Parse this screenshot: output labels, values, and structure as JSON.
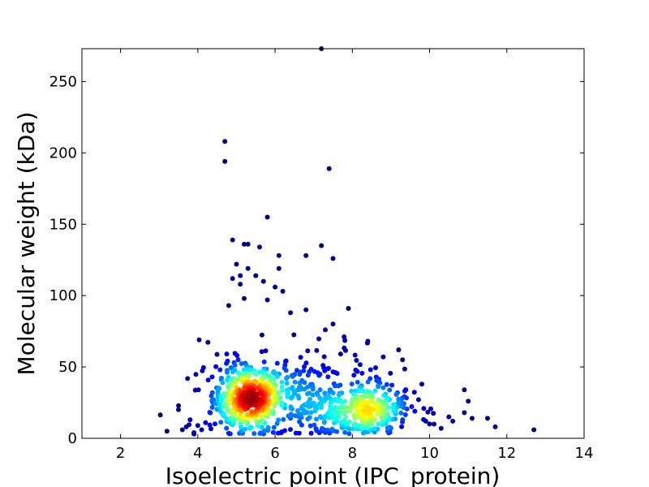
{
  "chart_data": {
    "type": "scatter",
    "title": "",
    "xlabel": "Isoelectric point (IPC_protein)",
    "ylabel": "Molecular weight (kDa)",
    "xlim": [
      1,
      14
    ],
    "ylim": [
      0,
      273
    ],
    "x_ticks": [
      2,
      4,
      6,
      8,
      10,
      12,
      14
    ],
    "y_ticks": [
      0,
      50,
      100,
      150,
      200,
      250
    ],
    "grid": false,
    "legend": "none",
    "color_encoding": "point density (jet colormap: blue = low, red = high)",
    "clusters": [
      {
        "center": [
          5.3,
          28
        ],
        "spread": [
          0.45,
          12
        ],
        "count": 420,
        "density": "high"
      },
      {
        "center": [
          8.3,
          20
        ],
        "spread": [
          0.65,
          9
        ],
        "count": 300,
        "density": "medium"
      },
      {
        "center": [
          6.8,
          30
        ],
        "spread": [
          1.2,
          18
        ],
        "count": 280,
        "density": "low"
      }
    ],
    "outlier_points": [
      [
        7.2,
        273
      ],
      [
        4.7,
        208
      ],
      [
        4.7,
        194
      ],
      [
        7.4,
        189
      ],
      [
        5.8,
        155
      ],
      [
        4.9,
        139
      ],
      [
        5.2,
        136
      ],
      [
        5.3,
        136
      ],
      [
        5.6,
        134
      ],
      [
        7.2,
        135
      ],
      [
        6.1,
        128
      ],
      [
        6.8,
        128
      ],
      [
        7.5,
        126
      ],
      [
        5.0,
        122
      ],
      [
        6.1,
        119
      ],
      [
        5.3,
        119
      ],
      [
        5.1,
        114
      ],
      [
        5.5,
        114
      ],
      [
        4.9,
        112
      ],
      [
        5.7,
        110
      ],
      [
        5.1,
        108
      ],
      [
        6.0,
        106
      ],
      [
        6.2,
        103
      ],
      [
        5.8,
        97
      ],
      [
        5.2,
        98
      ],
      [
        4.8,
        93
      ],
      [
        6.8,
        90
      ],
      [
        7.9,
        91
      ],
      [
        6.4,
        88
      ],
      [
        7.5,
        80
      ],
      [
        7.3,
        76
      ],
      [
        8.4,
        68
      ],
      [
        9.2,
        62
      ],
      [
        8.8,
        57
      ],
      [
        9.3,
        55
      ],
      [
        10.5,
        15
      ],
      [
        9.8,
        38
      ],
      [
        10.9,
        34
      ],
      [
        11.0,
        26
      ],
      [
        10.9,
        18
      ],
      [
        11.1,
        14
      ],
      [
        11.5,
        14
      ],
      [
        11.7,
        8
      ],
      [
        12.7,
        6
      ],
      [
        3.2,
        5
      ],
      [
        3.5,
        20
      ],
      [
        3.6,
        6
      ],
      [
        3.8,
        13
      ],
      [
        3.7,
        8
      ],
      [
        3.9,
        4
      ],
      [
        4.1,
        6
      ],
      [
        4.0,
        9
      ],
      [
        10.3,
        7
      ],
      [
        10.0,
        10
      ],
      [
        10.6,
        12
      ],
      [
        9.9,
        12
      ],
      [
        3.9,
        3
      ],
      [
        4.2,
        11
      ]
    ]
  }
}
